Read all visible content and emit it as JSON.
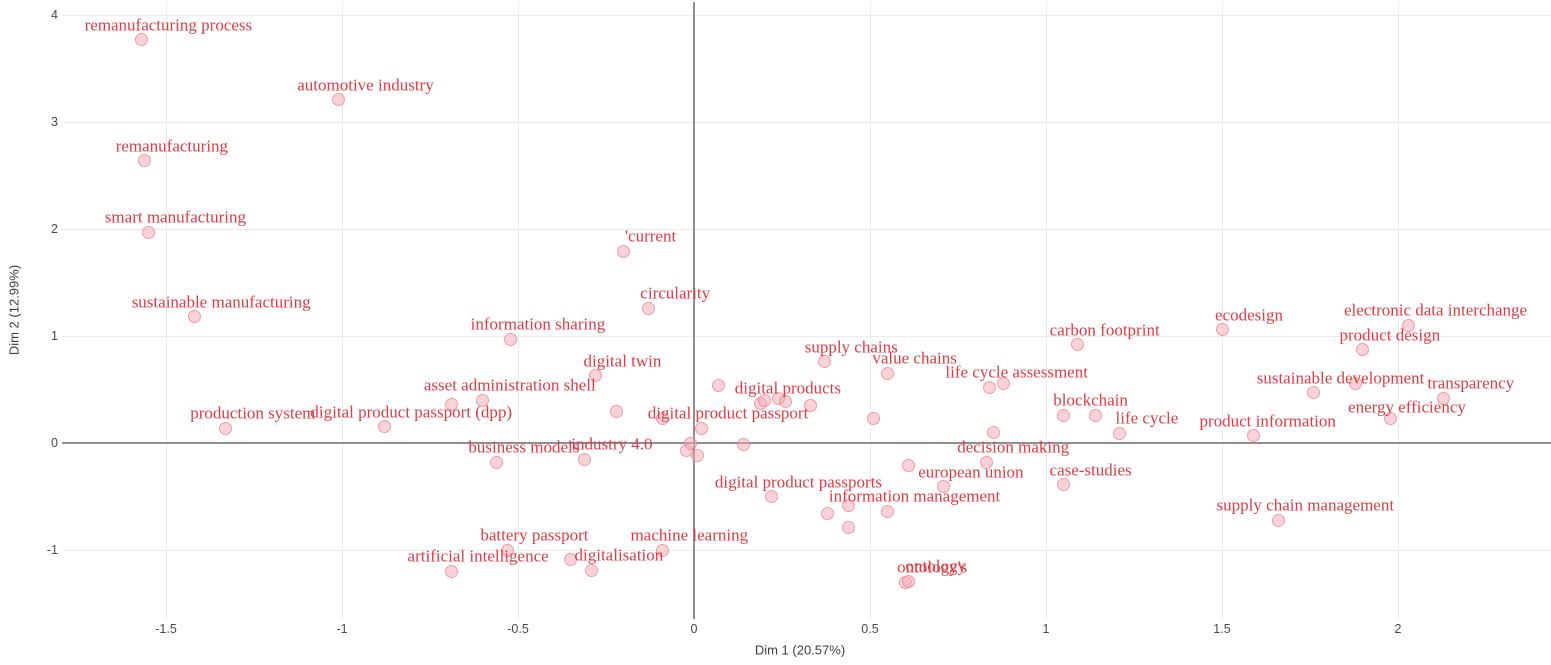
{
  "chart_data": {
    "type": "scatter",
    "title": "",
    "xlabel": "Dim 1 (20.57%)",
    "ylabel": "Dim 2 (12.99%)",
    "xlim": [
      -1.8,
      2.43
    ],
    "ylim": [
      -1.6,
      4.12
    ],
    "x_ticks": [
      "-1.5",
      "-1",
      "-0.5",
      "0",
      "0.5",
      "1",
      "1.5",
      "2"
    ],
    "x_tick_values": [
      -1.5,
      -1,
      -0.5,
      0,
      0.5,
      1,
      1.5,
      2
    ],
    "y_ticks": [
      "-1",
      "0",
      "1",
      "2",
      "3",
      "4"
    ],
    "y_tick_values": [
      -1,
      0,
      1,
      2,
      3,
      4
    ],
    "grid": true,
    "zero_lines": true,
    "legend": "none",
    "colors": {
      "background": "#ffffff",
      "gridline": "#ebebeb",
      "zero_line": "#8f8f8f",
      "marker_fill": "rgba(246,168,179,0.5)",
      "marker_stroke": "rgba(233,126,140,0.65)",
      "label_text": "#dd3c45",
      "tick_text": "#4a4a4a",
      "axis_title_text": "#3d3d3d"
    },
    "points": [
      {
        "label": "remanufacturing process",
        "x": -1.57,
        "y": 3.77
      },
      {
        "label": "automotive industry",
        "x": -1.01,
        "y": 3.21
      },
      {
        "label": "remanufacturing",
        "x": -1.56,
        "y": 2.64
      },
      {
        "label": "smart manufacturing",
        "x": -1.55,
        "y": 1.97
      },
      {
        "label": "sustainable manufacturing",
        "x": -1.42,
        "y": 1.18
      },
      {
        "label": "'current",
        "x": -0.2,
        "y": 1.79
      },
      {
        "label": "circularity",
        "x": -0.13,
        "y": 1.26
      },
      {
        "label": "information sharing",
        "x": -0.52,
        "y": 0.97
      },
      {
        "label": "digital twin",
        "x": -0.28,
        "y": 0.63
      },
      {
        "label": "asset administration shell",
        "x": -0.6,
        "y": 0.4
      },
      {
        "label": "digital product passport (dpp)",
        "x": -0.88,
        "y": 0.15
      },
      {
        "label": "production system",
        "x": -1.33,
        "y": 0.14
      },
      {
        "label": "business models",
        "x": -0.56,
        "y": -0.18
      },
      {
        "label": "industry 4.0",
        "x": -0.31,
        "y": -0.15
      },
      {
        "label": "battery passport",
        "x": -0.53,
        "y": -1.0
      },
      {
        "label": "artificial intelligence",
        "x": -0.69,
        "y": -1.2
      },
      {
        "label": "digitalisation",
        "x": -0.29,
        "y": -1.19
      },
      {
        "label": "machine learning",
        "x": -0.09,
        "y": -1.0
      },
      {
        "label": "digital products",
        "x": 0.19,
        "y": 0.37
      },
      {
        "label": "digital product passport",
        "x": 0.02,
        "y": 0.14
      },
      {
        "label": "supply chains",
        "x": 0.37,
        "y": 0.76
      },
      {
        "label": "value chains",
        "x": 0.55,
        "y": 0.65
      },
      {
        "label": "digital product passports",
        "x": 0.22,
        "y": -0.5
      },
      {
        "label": "information management",
        "x": 0.55,
        "y": -0.64
      },
      {
        "label": "european union",
        "x": 0.71,
        "y": -0.41
      },
      {
        "label": "decision making",
        "x": 0.83,
        "y": -0.18
      },
      {
        "label": "case-studies",
        "x": 1.05,
        "y": -0.39
      },
      {
        "label": "ontology's",
        "x": 0.6,
        "y": -1.3
      },
      {
        "label": "ontology",
        "x": 0.61,
        "y": -1.29
      },
      {
        "label": "life cycle assessment",
        "x": 0.84,
        "y": 0.52
      },
      {
        "label": "carbon footprint",
        "x": 1.09,
        "y": 0.92
      },
      {
        "label": "blockchain",
        "x": 1.05,
        "y": 0.26
      },
      {
        "label": "life cycle",
        "x": 1.21,
        "y": 0.09
      },
      {
        "label": "ecodesign",
        "x": 1.5,
        "y": 1.06
      },
      {
        "label": "electronic data interchange",
        "x": 2.03,
        "y": 1.1
      },
      {
        "label": "product design",
        "x": 1.9,
        "y": 0.87
      },
      {
        "label": "sustainable development",
        "x": 1.76,
        "y": 0.47
      },
      {
        "label": "transparency",
        "x": 2.13,
        "y": 0.42
      },
      {
        "label": "energy efficiency",
        "x": 1.98,
        "y": 0.23,
        "dx": 16,
        "dy": -11
      },
      {
        "label": "product information",
        "x": 1.59,
        "y": 0.07,
        "dx": 14
      },
      {
        "label": "supply chain management",
        "x": 1.66,
        "y": -0.72
      }
    ],
    "unlabeled_points": [
      [
        -0.69,
        0.36
      ],
      [
        -0.22,
        0.29
      ],
      [
        -0.09,
        0.23
      ],
      [
        0.07,
        0.54
      ],
      [
        0.2,
        0.4
      ],
      [
        0.24,
        0.42
      ],
      [
        0.26,
        0.39
      ],
      [
        0.33,
        0.35
      ],
      [
        0.51,
        0.23
      ],
      [
        -0.01,
        0.0
      ],
      [
        -0.02,
        -0.07
      ],
      [
        0.01,
        -0.12
      ],
      [
        0.14,
        -0.01
      ],
      [
        0.38,
        -0.66
      ],
      [
        0.44,
        -0.58
      ],
      [
        0.44,
        -0.79
      ],
      [
        0.61,
        -0.21
      ],
      [
        0.85,
        0.1
      ],
      [
        0.88,
        0.56
      ],
      [
        1.14,
        0.26
      ],
      [
        1.88,
        0.56
      ],
      [
        -0.35,
        -1.09
      ]
    ]
  }
}
